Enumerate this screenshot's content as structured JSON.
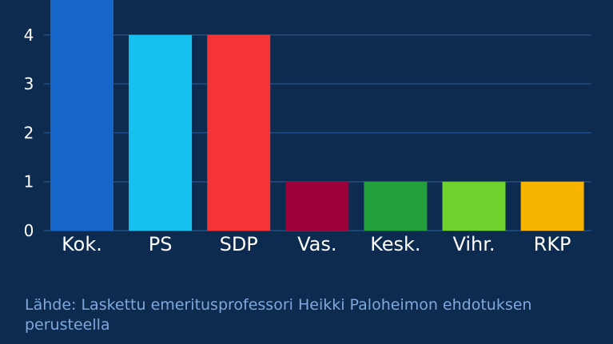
{
  "chart_data": {
    "type": "bar",
    "categories": [
      "Kok.",
      "PS",
      "SDP",
      "Vas.",
      "Kesk.",
      "Vihr.",
      "RKP"
    ],
    "values": [
      5,
      4,
      4,
      1,
      1,
      1,
      1
    ],
    "colors": [
      "#1566c8",
      "#16c1f0",
      "#f53535",
      "#9b0038",
      "#23a03b",
      "#6fd12c",
      "#f7b500"
    ],
    "yticks": [
      0,
      1,
      2,
      3,
      4
    ],
    "ylim": [
      0,
      4.7
    ],
    "grid": true,
    "gridline_color": "#1f4f86",
    "title": "",
    "xlabel": "",
    "ylabel": ""
  },
  "source": {
    "text": "Lähde: Laskettu emeritusprofessori Heikki Paloheimon ehdotuksen perusteella"
  }
}
